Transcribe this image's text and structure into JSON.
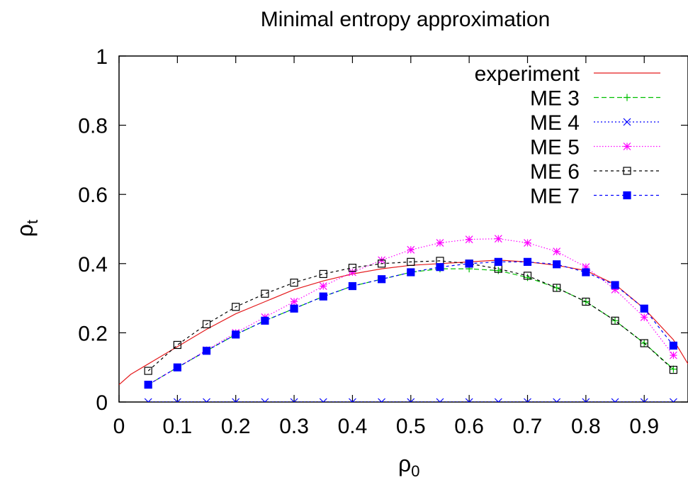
{
  "chart_data": {
    "type": "line",
    "title": "Minimal entropy approximation",
    "xlabel": "ρ0",
    "xlabel_main": "ρ",
    "xlabel_sub": "0",
    "ylabel": "ρt",
    "ylabel_main": "ρ",
    "ylabel_sub": "t",
    "xlim": [
      0,
      0.975
    ],
    "ylim": [
      0,
      1
    ],
    "xticks": [
      0,
      0.1,
      0.2,
      0.3,
      0.4,
      0.5,
      0.6,
      0.7,
      0.8,
      0.9
    ],
    "xtick_labels": [
      "0",
      "0.1",
      "0.2",
      "0.3",
      "0.4",
      "0.5",
      "0.6",
      "0.7",
      "0.8",
      "0.9"
    ],
    "yticks": [
      0,
      0.2,
      0.4,
      0.6,
      0.8,
      1
    ],
    "ytick_labels": [
      "0",
      "0.2",
      "0.4",
      "0.6",
      "0.8",
      "1"
    ],
    "grid": false,
    "legend_position": "top-right",
    "x": [
      0.05,
      0.1,
      0.15,
      0.2,
      0.25,
      0.3,
      0.35,
      0.4,
      0.45,
      0.5,
      0.55,
      0.6,
      0.65,
      0.7,
      0.75,
      0.8,
      0.85,
      0.9,
      0.95
    ],
    "series": [
      {
        "name": "experiment",
        "color": "#e41a1c",
        "dash": "solid",
        "marker": "none",
        "x": [
          0.0,
          0.02,
          0.05,
          0.1,
          0.15,
          0.2,
          0.25,
          0.3,
          0.35,
          0.4,
          0.45,
          0.5,
          0.55,
          0.6,
          0.65,
          0.7,
          0.75,
          0.8,
          0.85,
          0.9,
          0.95,
          0.975
        ],
        "values": [
          0.05,
          0.08,
          0.11,
          0.16,
          0.21,
          0.255,
          0.29,
          0.325,
          0.35,
          0.37,
          0.385,
          0.395,
          0.4,
          0.405,
          0.41,
          0.405,
          0.395,
          0.38,
          0.34,
          0.27,
          0.18,
          0.11
        ]
      },
      {
        "name": "ME 3",
        "color": "#00c000",
        "dash": "long",
        "marker": "plus",
        "values": [
          0.05,
          0.1,
          0.148,
          0.195,
          0.235,
          0.27,
          0.305,
          0.335,
          0.355,
          0.375,
          0.385,
          0.385,
          0.38,
          0.36,
          0.33,
          0.29,
          0.235,
          0.17,
          0.095
        ]
      },
      {
        "name": "ME 4",
        "color": "#0000ff",
        "dash": "dotted",
        "marker": "cross",
        "values": [
          0,
          0,
          0,
          0,
          0,
          0,
          0,
          0,
          0,
          0,
          0,
          0,
          0,
          0,
          0,
          0,
          0,
          0,
          0
        ]
      },
      {
        "name": "ME 5",
        "color": "#ff00ff",
        "dash": "fine",
        "marker": "star",
        "values": [
          0.05,
          0.1,
          0.15,
          0.2,
          0.245,
          0.29,
          0.335,
          0.375,
          0.41,
          0.44,
          0.46,
          0.47,
          0.472,
          0.46,
          0.435,
          0.39,
          0.325,
          0.245,
          0.135
        ]
      },
      {
        "name": "ME 6",
        "color": "#000000",
        "dash": "dashed",
        "marker": "open-square",
        "values": [
          0.09,
          0.165,
          0.225,
          0.275,
          0.313,
          0.345,
          0.37,
          0.388,
          0.4,
          0.405,
          0.408,
          0.4,
          0.385,
          0.365,
          0.33,
          0.29,
          0.235,
          0.17,
          0.093
        ]
      },
      {
        "name": "ME 7",
        "color": "#0000ff",
        "dash": "dashed",
        "marker": "filled-square",
        "values": [
          0.05,
          0.1,
          0.148,
          0.195,
          0.235,
          0.27,
          0.305,
          0.335,
          0.355,
          0.375,
          0.39,
          0.4,
          0.405,
          0.405,
          0.398,
          0.375,
          0.338,
          0.27,
          0.163
        ]
      }
    ]
  }
}
